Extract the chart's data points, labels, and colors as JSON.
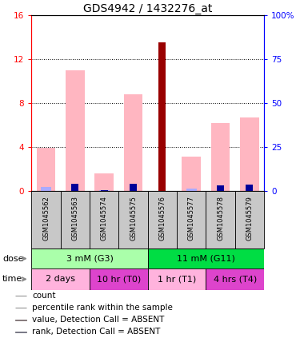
{
  "title": "GDS4942 / 1432276_at",
  "samples": [
    "GSM1045562",
    "GSM1045563",
    "GSM1045574",
    "GSM1045575",
    "GSM1045576",
    "GSM1045577",
    "GSM1045578",
    "GSM1045579"
  ],
  "count_values": [
    0,
    0,
    0,
    0,
    13.5,
    0,
    0,
    0
  ],
  "percentile_values": [
    0,
    4.3,
    0.6,
    4.2,
    4.4,
    0,
    3.2,
    3.7
  ],
  "absent_value_values": [
    3.9,
    11.0,
    1.6,
    8.8,
    0,
    3.1,
    6.2,
    6.7
  ],
  "absent_rank_values": [
    2.3,
    0,
    0.6,
    0,
    0,
    1.4,
    0,
    0
  ],
  "ylim_left": [
    0,
    16
  ],
  "ylim_right": [
    0,
    100
  ],
  "yticks_left": [
    0,
    4,
    8,
    12,
    16
  ],
  "yticks_right": [
    0,
    25,
    50,
    75,
    100
  ],
  "ytick_labels_left": [
    "0",
    "4",
    "8",
    "12",
    "16"
  ],
  "ytick_labels_right": [
    "0",
    "25",
    "50",
    "75",
    "100%"
  ],
  "dose_groups": [
    {
      "label": "3 mM (G3)",
      "start": 0,
      "end": 4,
      "color": "#AAFFAA"
    },
    {
      "label": "11 mM (G11)",
      "start": 4,
      "end": 8,
      "color": "#00DD44"
    }
  ],
  "time_groups": [
    {
      "label": "2 days",
      "start": 0,
      "end": 2,
      "color": "#FFB3DD"
    },
    {
      "label": "10 hr (T0)",
      "start": 2,
      "end": 4,
      "color": "#DD44CC"
    },
    {
      "label": "1 hr (T1)",
      "start": 4,
      "end": 6,
      "color": "#FFB3DD"
    },
    {
      "label": "4 hrs (T4)",
      "start": 6,
      "end": 8,
      "color": "#DD44CC"
    }
  ],
  "color_count": "#990000",
  "color_percentile": "#000099",
  "color_absent_value": "#FFB6C1",
  "color_absent_rank": "#AAAAFF",
  "sample_box_color": "#C8C8C8",
  "title_fontsize": 10,
  "tick_fontsize": 7.5,
  "legend_fontsize": 7.5
}
